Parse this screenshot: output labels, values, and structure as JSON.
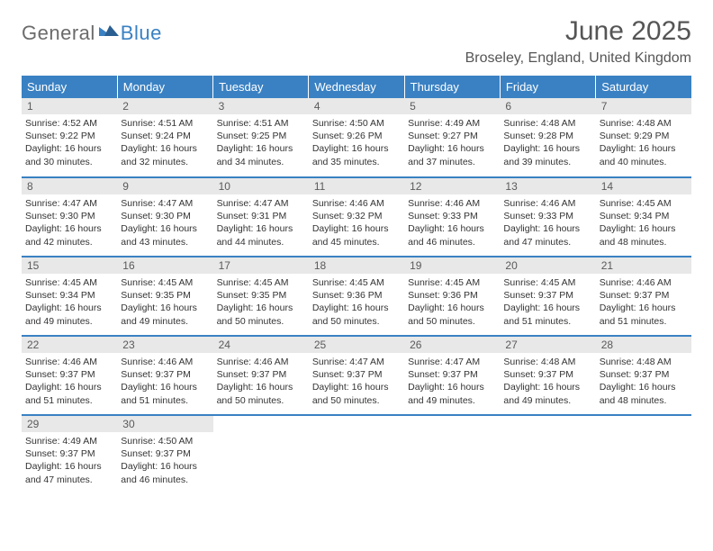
{
  "logo": {
    "general": "General",
    "blue": "Blue"
  },
  "title": "June 2025",
  "location": "Broseley, England, United Kingdom",
  "weekdays": [
    "Sunday",
    "Monday",
    "Tuesday",
    "Wednesday",
    "Thursday",
    "Friday",
    "Saturday"
  ],
  "colors": {
    "accent": "#3a81c3",
    "header_text": "#ffffff",
    "daynum_bg": "#e8e8e8",
    "text": "#333333"
  },
  "days": [
    {
      "n": "1",
      "sunrise": "Sunrise: 4:52 AM",
      "sunset": "Sunset: 9:22 PM",
      "daylight": "Daylight: 16 hours and 30 minutes."
    },
    {
      "n": "2",
      "sunrise": "Sunrise: 4:51 AM",
      "sunset": "Sunset: 9:24 PM",
      "daylight": "Daylight: 16 hours and 32 minutes."
    },
    {
      "n": "3",
      "sunrise": "Sunrise: 4:51 AM",
      "sunset": "Sunset: 9:25 PM",
      "daylight": "Daylight: 16 hours and 34 minutes."
    },
    {
      "n": "4",
      "sunrise": "Sunrise: 4:50 AM",
      "sunset": "Sunset: 9:26 PM",
      "daylight": "Daylight: 16 hours and 35 minutes."
    },
    {
      "n": "5",
      "sunrise": "Sunrise: 4:49 AM",
      "sunset": "Sunset: 9:27 PM",
      "daylight": "Daylight: 16 hours and 37 minutes."
    },
    {
      "n": "6",
      "sunrise": "Sunrise: 4:48 AM",
      "sunset": "Sunset: 9:28 PM",
      "daylight": "Daylight: 16 hours and 39 minutes."
    },
    {
      "n": "7",
      "sunrise": "Sunrise: 4:48 AM",
      "sunset": "Sunset: 9:29 PM",
      "daylight": "Daylight: 16 hours and 40 minutes."
    },
    {
      "n": "8",
      "sunrise": "Sunrise: 4:47 AM",
      "sunset": "Sunset: 9:30 PM",
      "daylight": "Daylight: 16 hours and 42 minutes."
    },
    {
      "n": "9",
      "sunrise": "Sunrise: 4:47 AM",
      "sunset": "Sunset: 9:30 PM",
      "daylight": "Daylight: 16 hours and 43 minutes."
    },
    {
      "n": "10",
      "sunrise": "Sunrise: 4:47 AM",
      "sunset": "Sunset: 9:31 PM",
      "daylight": "Daylight: 16 hours and 44 minutes."
    },
    {
      "n": "11",
      "sunrise": "Sunrise: 4:46 AM",
      "sunset": "Sunset: 9:32 PM",
      "daylight": "Daylight: 16 hours and 45 minutes."
    },
    {
      "n": "12",
      "sunrise": "Sunrise: 4:46 AM",
      "sunset": "Sunset: 9:33 PM",
      "daylight": "Daylight: 16 hours and 46 minutes."
    },
    {
      "n": "13",
      "sunrise": "Sunrise: 4:46 AM",
      "sunset": "Sunset: 9:33 PM",
      "daylight": "Daylight: 16 hours and 47 minutes."
    },
    {
      "n": "14",
      "sunrise": "Sunrise: 4:45 AM",
      "sunset": "Sunset: 9:34 PM",
      "daylight": "Daylight: 16 hours and 48 minutes."
    },
    {
      "n": "15",
      "sunrise": "Sunrise: 4:45 AM",
      "sunset": "Sunset: 9:34 PM",
      "daylight": "Daylight: 16 hours and 49 minutes."
    },
    {
      "n": "16",
      "sunrise": "Sunrise: 4:45 AM",
      "sunset": "Sunset: 9:35 PM",
      "daylight": "Daylight: 16 hours and 49 minutes."
    },
    {
      "n": "17",
      "sunrise": "Sunrise: 4:45 AM",
      "sunset": "Sunset: 9:35 PM",
      "daylight": "Daylight: 16 hours and 50 minutes."
    },
    {
      "n": "18",
      "sunrise": "Sunrise: 4:45 AM",
      "sunset": "Sunset: 9:36 PM",
      "daylight": "Daylight: 16 hours and 50 minutes."
    },
    {
      "n": "19",
      "sunrise": "Sunrise: 4:45 AM",
      "sunset": "Sunset: 9:36 PM",
      "daylight": "Daylight: 16 hours and 50 minutes."
    },
    {
      "n": "20",
      "sunrise": "Sunrise: 4:45 AM",
      "sunset": "Sunset: 9:37 PM",
      "daylight": "Daylight: 16 hours and 51 minutes."
    },
    {
      "n": "21",
      "sunrise": "Sunrise: 4:46 AM",
      "sunset": "Sunset: 9:37 PM",
      "daylight": "Daylight: 16 hours and 51 minutes."
    },
    {
      "n": "22",
      "sunrise": "Sunrise: 4:46 AM",
      "sunset": "Sunset: 9:37 PM",
      "daylight": "Daylight: 16 hours and 51 minutes."
    },
    {
      "n": "23",
      "sunrise": "Sunrise: 4:46 AM",
      "sunset": "Sunset: 9:37 PM",
      "daylight": "Daylight: 16 hours and 51 minutes."
    },
    {
      "n": "24",
      "sunrise": "Sunrise: 4:46 AM",
      "sunset": "Sunset: 9:37 PM",
      "daylight": "Daylight: 16 hours and 50 minutes."
    },
    {
      "n": "25",
      "sunrise": "Sunrise: 4:47 AM",
      "sunset": "Sunset: 9:37 PM",
      "daylight": "Daylight: 16 hours and 50 minutes."
    },
    {
      "n": "26",
      "sunrise": "Sunrise: 4:47 AM",
      "sunset": "Sunset: 9:37 PM",
      "daylight": "Daylight: 16 hours and 49 minutes."
    },
    {
      "n": "27",
      "sunrise": "Sunrise: 4:48 AM",
      "sunset": "Sunset: 9:37 PM",
      "daylight": "Daylight: 16 hours and 49 minutes."
    },
    {
      "n": "28",
      "sunrise": "Sunrise: 4:48 AM",
      "sunset": "Sunset: 9:37 PM",
      "daylight": "Daylight: 16 hours and 48 minutes."
    },
    {
      "n": "29",
      "sunrise": "Sunrise: 4:49 AM",
      "sunset": "Sunset: 9:37 PM",
      "daylight": "Daylight: 16 hours and 47 minutes."
    },
    {
      "n": "30",
      "sunrise": "Sunrise: 4:50 AM",
      "sunset": "Sunset: 9:37 PM",
      "daylight": "Daylight: 16 hours and 46 minutes."
    }
  ]
}
